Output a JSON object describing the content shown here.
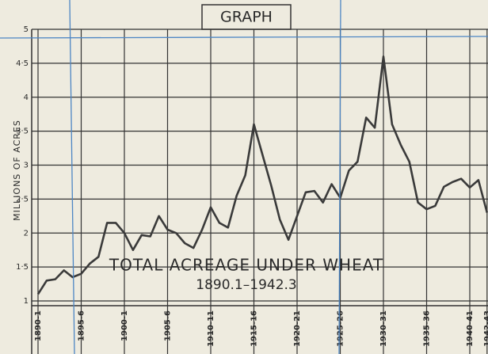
{
  "chart_data": {
    "type": "line",
    "title": "GRAPH",
    "y_label": "MILLIONS OF ACRES",
    "annotations": [
      "TOTAL ACREAGE UNDER WHEAT",
      "1890.1–1942.3"
    ],
    "categories": [
      "1890-1",
      null,
      null,
      null,
      null,
      "1895-6",
      null,
      null,
      null,
      null,
      "1900-1",
      null,
      null,
      null,
      null,
      "1905-6",
      null,
      null,
      null,
      null,
      "1910-11",
      null,
      null,
      null,
      null,
      "1915-16",
      null,
      null,
      null,
      null,
      "1920-21",
      null,
      null,
      null,
      null,
      "1925-26",
      null,
      null,
      null,
      null,
      "1930-31",
      null,
      null,
      null,
      null,
      "1935-36",
      null,
      null,
      null,
      null,
      "1940-41",
      null,
      "1942-43"
    ],
    "values": [
      1.1,
      1.3,
      1.32,
      1.45,
      1.35,
      1.4,
      1.55,
      1.65,
      2.15,
      2.15,
      2.0,
      1.75,
      1.97,
      1.95,
      2.25,
      2.05,
      2.0,
      1.85,
      1.78,
      2.05,
      2.38,
      2.15,
      2.08,
      2.55,
      2.85,
      3.6,
      3.15,
      2.7,
      2.2,
      1.9,
      2.25,
      2.6,
      2.62,
      2.45,
      2.72,
      2.52,
      2.92,
      3.05,
      3.7,
      3.55,
      4.6,
      3.6,
      3.3,
      3.05,
      2.45,
      2.35,
      2.4,
      2.68,
      2.75,
      2.8,
      2.67,
      2.78,
      2.3
    ],
    "color": "#3a3a3a",
    "ylim": [
      1,
      5
    ],
    "yticks": [
      1,
      {
        "value": 1.5,
        "label": "1·5"
      },
      2,
      {
        "value": 2.5,
        "label": "2·5"
      },
      3,
      {
        "value": 3.5,
        "label": "3·5"
      },
      4,
      {
        "value": 4.5,
        "label": "4·5"
      },
      5
    ],
    "grid": true
  }
}
